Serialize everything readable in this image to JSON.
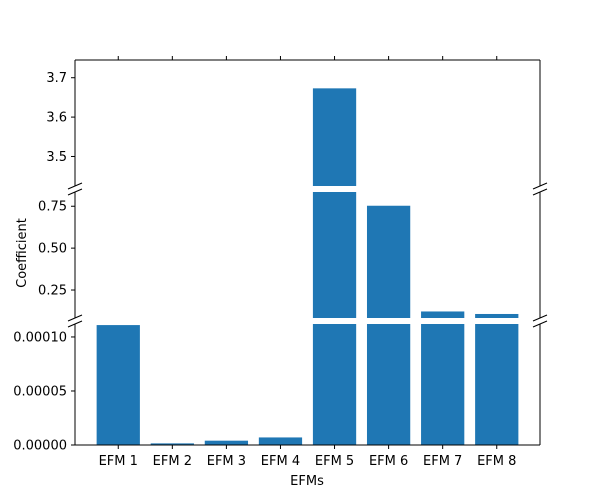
{
  "chart_data": {
    "type": "bar",
    "title": "",
    "xlabel": "EFMs",
    "ylabel": "Coefficient",
    "categories": [
      "EFM 1",
      "EFM 2",
      "EFM 3",
      "EFM 4",
      "EFM 5",
      "EFM 6",
      "EFM 7",
      "EFM 8"
    ],
    "values": [
      0.000111,
      1.5e-06,
      4e-06,
      7e-06,
      3.673,
      0.753,
      0.122,
      0.107
    ],
    "bar_color": "#1f77b4",
    "grid": false,
    "axis_breaks": true,
    "panels": [
      {
        "name": "top",
        "ylim": [
          3.425,
          3.745
        ],
        "ticks": [
          3.5,
          3.6,
          3.7
        ],
        "tick_labels": [
          "3.5",
          "3.6",
          "3.7"
        ]
      },
      {
        "name": "middle",
        "ylim": [
          0.083,
          0.835
        ],
        "ticks": [
          0.25,
          0.5,
          0.75
        ],
        "tick_labels": [
          "0.25",
          "0.50",
          "0.75"
        ]
      },
      {
        "name": "bottom",
        "ylim": [
          0,
          0.000112
        ],
        "ticks": [
          0,
          5e-05,
          0.0001
        ],
        "tick_labels": [
          "0.00000",
          "0.00005",
          "0.00010"
        ]
      }
    ]
  }
}
